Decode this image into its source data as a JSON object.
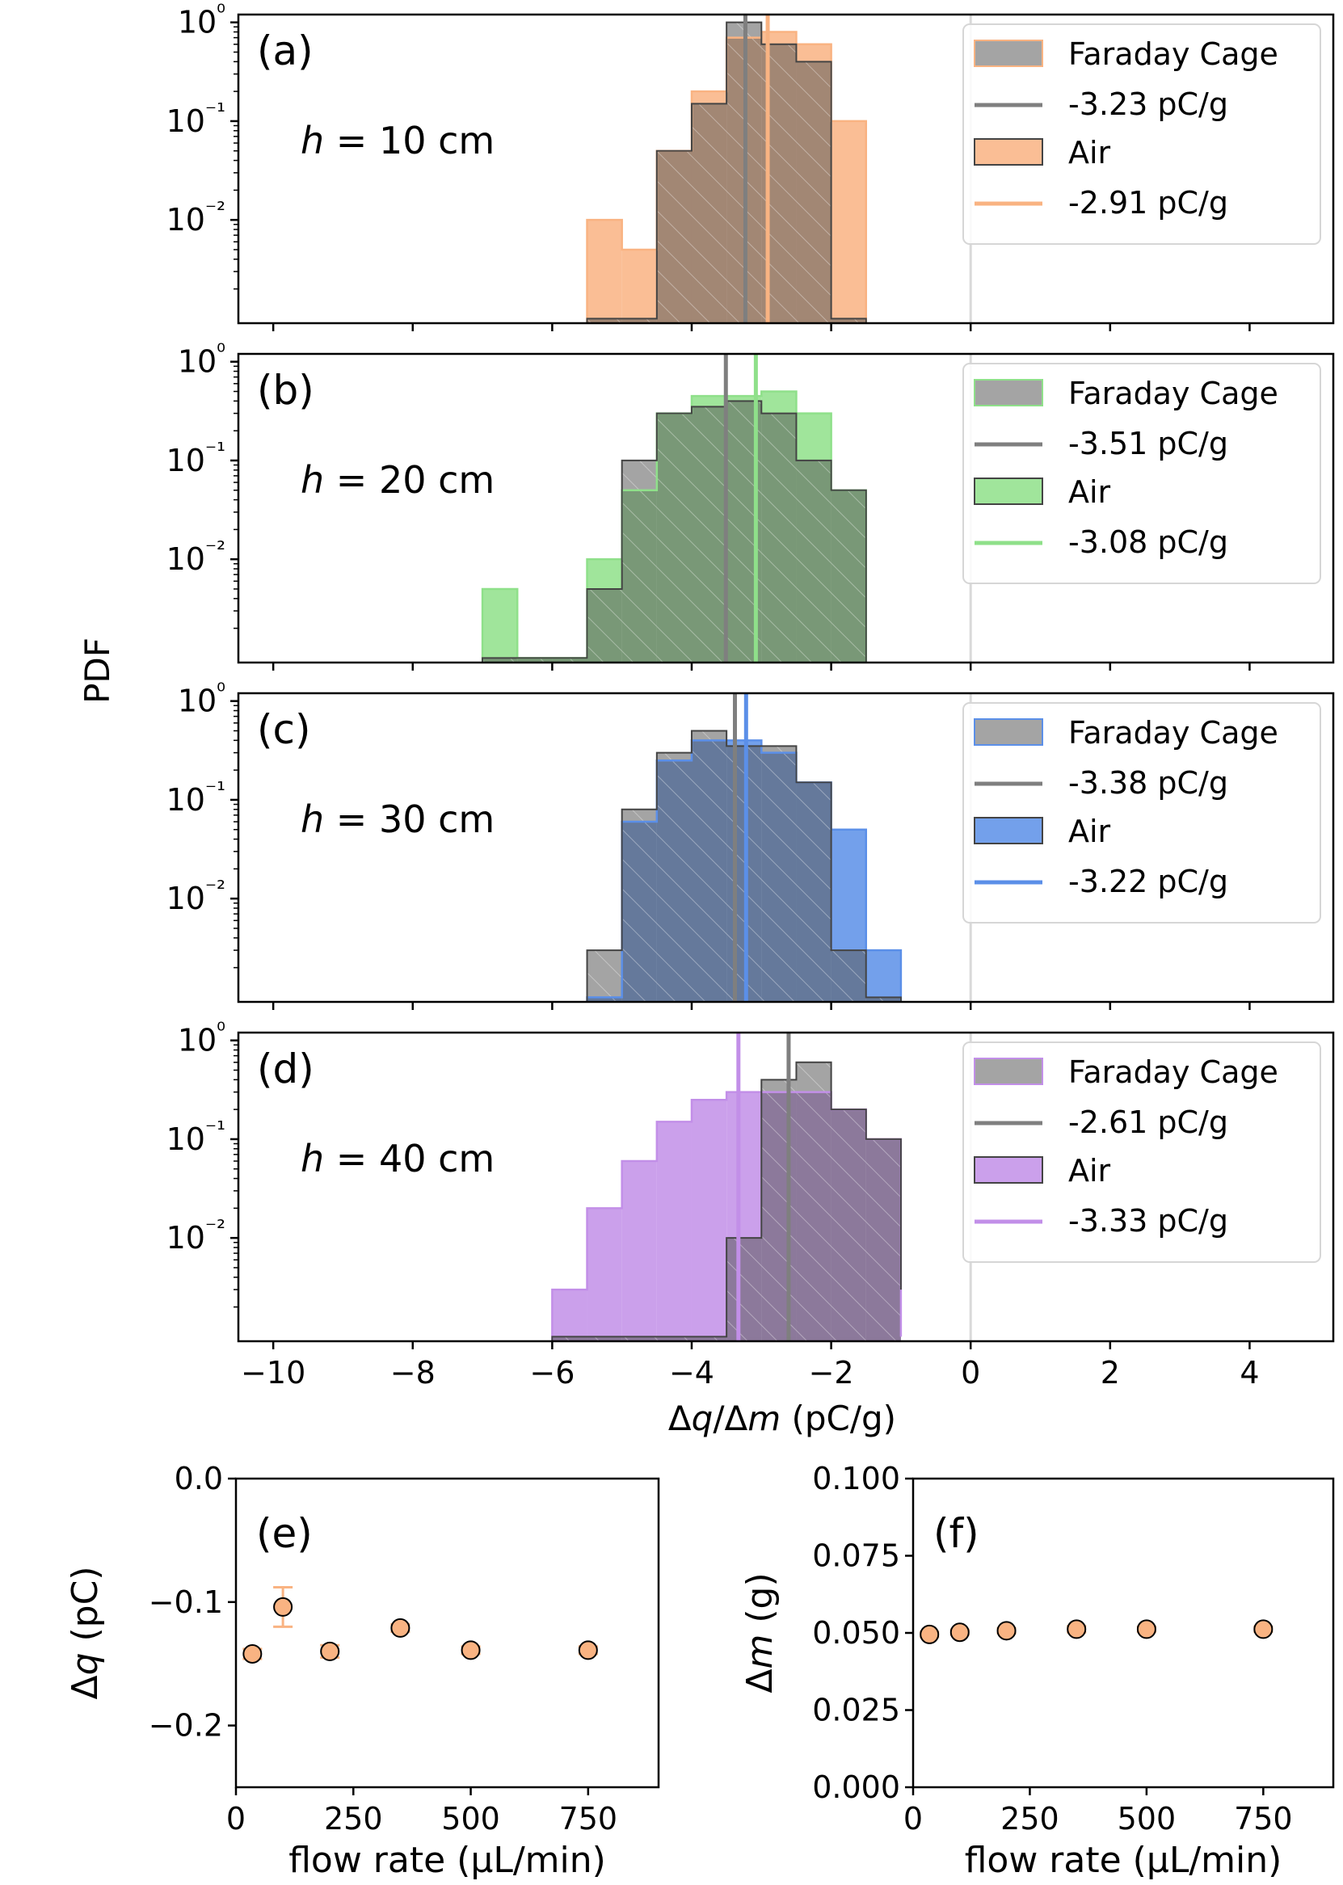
{
  "figure": {
    "shared_ylabel": "PDF",
    "shared_xlabel": "Δq/Δm (pC/g)"
  },
  "chart_data": [
    {
      "type": "histogram",
      "panel": "(a)",
      "annotation": "h = 10 cm",
      "xlim": [
        -10.5,
        5.2
      ],
      "xticks": [
        -10,
        -8,
        -6,
        -4,
        -2,
        0,
        2,
        4
      ],
      "yscale": "log",
      "ylim": [
        0.0009,
        1.2
      ],
      "yticks": [
        "10⁰",
        "10⁻¹",
        "10⁻²"
      ],
      "legend_position": "top-right",
      "zero_line": 0,
      "color": "#f9b382",
      "bin_edges": [
        -5.5,
        -5.0,
        -4.5,
        -4.0,
        -3.5,
        -3.0,
        -2.5,
        -2.0,
        -1.5
      ],
      "series": [
        {
          "name": "Faraday Cage",
          "values": [
            0.001,
            0.001,
            0.05,
            0.15,
            1.0,
            0.6,
            0.4,
            0.001
          ],
          "mean": -3.23,
          "mean_label": "-3.23 pC/g",
          "color": "#7f7f7f"
        },
        {
          "name": "Air",
          "values": [
            0.01,
            0.005,
            0.05,
            0.2,
            0.7,
            0.8,
            0.6,
            0.1
          ],
          "mean": -2.91,
          "mean_label": "-2.91 pC/g",
          "color": "#f9b382"
        }
      ]
    },
    {
      "type": "histogram",
      "panel": "(b)",
      "annotation": "h = 20 cm",
      "xlim": [
        -10.5,
        5.2
      ],
      "xticks": [
        -10,
        -8,
        -6,
        -4,
        -2,
        0,
        2,
        4
      ],
      "yscale": "log",
      "ylim": [
        0.0009,
        1.2
      ],
      "yticks": [
        "10⁰",
        "10⁻¹",
        "10⁻²"
      ],
      "legend_position": "top-right",
      "zero_line": 0,
      "color": "#8fe08a",
      "bin_edges": [
        -7.0,
        -6.5,
        -6.0,
        -5.5,
        -5.0,
        -4.5,
        -4.0,
        -3.5,
        -3.0,
        -2.5,
        -2.0,
        -1.5
      ],
      "series": [
        {
          "name": "Faraday Cage",
          "values": [
            0.001,
            0.001,
            0.001,
            0.005,
            0.1,
            0.3,
            0.35,
            0.4,
            0.3,
            0.1,
            0.05
          ],
          "mean": -3.51,
          "mean_label": "-3.51 pC/g",
          "color": "#7f7f7f"
        },
        {
          "name": "Air",
          "values": [
            0.005,
            0.001,
            0.001,
            0.01,
            0.05,
            0.3,
            0.45,
            0.45,
            0.5,
            0.3,
            0.05
          ],
          "mean": -3.08,
          "mean_label": "-3.08 pC/g",
          "color": "#8fe08a"
        }
      ]
    },
    {
      "type": "histogram",
      "panel": "(c)",
      "annotation": "h = 30 cm",
      "xlim": [
        -10.5,
        5.2
      ],
      "xticks": [
        -10,
        -8,
        -6,
        -4,
        -2,
        0,
        2,
        4
      ],
      "yscale": "log",
      "ylim": [
        0.0009,
        1.2
      ],
      "yticks": [
        "10⁰",
        "10⁻¹",
        "10⁻²"
      ],
      "legend_position": "top-right",
      "zero_line": 0,
      "color": "#5b8fe8",
      "bin_edges": [
        -5.5,
        -5.0,
        -4.5,
        -4.0,
        -3.5,
        -3.0,
        -2.5,
        -2.0,
        -1.5,
        -1.0
      ],
      "series": [
        {
          "name": "Faraday Cage",
          "values": [
            0.003,
            0.08,
            0.3,
            0.5,
            0.35,
            0.35,
            0.15,
            0.003,
            0.001
          ],
          "mean": -3.38,
          "mean_label": "-3.38 pC/g",
          "color": "#7f7f7f"
        },
        {
          "name": "Air",
          "values": [
            0.001,
            0.06,
            0.25,
            0.4,
            0.4,
            0.3,
            0.15,
            0.05,
            0.003
          ],
          "mean": -3.22,
          "mean_label": "-3.22 pC/g",
          "color": "#5b8fe8"
        }
      ]
    },
    {
      "type": "histogram",
      "panel": "(d)",
      "annotation": "h = 40 cm",
      "xlim": [
        -10.5,
        5.2
      ],
      "xticks": [
        -10,
        -8,
        -6,
        -4,
        -2,
        0,
        2,
        4
      ],
      "yscale": "log",
      "ylim": [
        0.0009,
        1.2
      ],
      "yticks": [
        "10⁰",
        "10⁻¹",
        "10⁻²"
      ],
      "legend_position": "top-right",
      "zero_line": 0,
      "color": "#c28fe8",
      "bin_edges": [
        -6.0,
        -5.5,
        -5.0,
        -4.5,
        -4.0,
        -3.5,
        -3.0,
        -2.5,
        -2.0,
        -1.5,
        -1.0
      ],
      "series": [
        {
          "name": "Faraday Cage",
          "values": [
            0.001,
            0.001,
            0.001,
            0.001,
            0.001,
            0.01,
            0.4,
            0.6,
            0.2,
            0.1,
            0.003
          ],
          "mean": -2.61,
          "mean_label": "-2.61 pC/g",
          "color": "#7f7f7f"
        },
        {
          "name": "Air",
          "values": [
            0.003,
            0.02,
            0.06,
            0.15,
            0.25,
            0.3,
            0.3,
            0.3,
            0.2,
            0.1,
            0.001
          ],
          "mean": -3.33,
          "mean_label": "-3.33 pC/g",
          "color": "#c28fe8"
        }
      ]
    },
    {
      "type": "scatter",
      "panel": "(e)",
      "xlabel": "flow rate (μL/min)",
      "ylabel": "Δq (pC)",
      "xlim": [
        0,
        900
      ],
      "ylim": [
        -0.25,
        0.0
      ],
      "xticks": [
        0,
        250,
        500,
        750
      ],
      "yticks": [
        -0.2,
        -0.1,
        0.0
      ],
      "ytick_labels": [
        "−0.2",
        "−0.1",
        "0.0"
      ],
      "marker_color": "#f9b382",
      "points": [
        {
          "x": 35,
          "y": -0.142,
          "err": 0.004
        },
        {
          "x": 100,
          "y": -0.104,
          "err": 0.016
        },
        {
          "x": 200,
          "y": -0.14,
          "err": 0.005
        },
        {
          "x": 350,
          "y": -0.121,
          "err": 0.003
        },
        {
          "x": 500,
          "y": -0.139,
          "err": 0.003
        },
        {
          "x": 750,
          "y": -0.139,
          "err": 0.003
        }
      ]
    },
    {
      "type": "scatter",
      "panel": "(f)",
      "xlabel": "flow rate (μL/min)",
      "ylabel": "Δm (g)",
      "xlim": [
        0,
        900
      ],
      "ylim": [
        0.0,
        0.1
      ],
      "xticks": [
        0,
        250,
        500,
        750
      ],
      "yticks": [
        0.0,
        0.025,
        0.05,
        0.075,
        0.1
      ],
      "ytick_labels": [
        "0.000",
        "0.025",
        "0.050",
        "0.075",
        "0.100"
      ],
      "marker_color": "#f9b382",
      "points": [
        {
          "x": 35,
          "y": 0.0495,
          "err": 0.0008
        },
        {
          "x": 100,
          "y": 0.0502,
          "err": 0.0008
        },
        {
          "x": 200,
          "y": 0.0507,
          "err": 0.0008
        },
        {
          "x": 350,
          "y": 0.0512,
          "err": 0.001
        },
        {
          "x": 500,
          "y": 0.0512,
          "err": 0.0008
        },
        {
          "x": 750,
          "y": 0.0512,
          "err": 0.0008
        }
      ]
    }
  ]
}
